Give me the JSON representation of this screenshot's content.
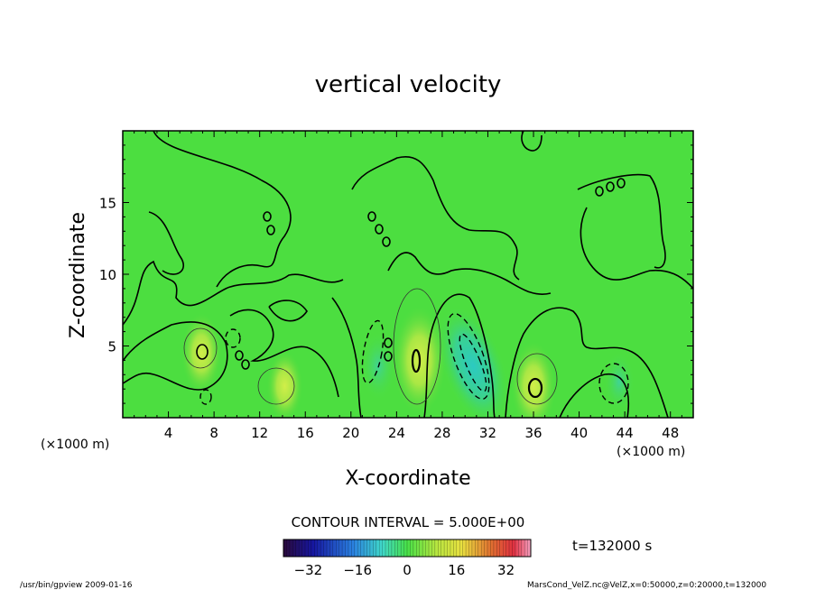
{
  "chart_data": {
    "type": "heatmap",
    "title": "vertical velocity",
    "xlabel": "X-coordinate",
    "ylabel": "Z-coordinate",
    "x_unit_label": "(×1000 m)",
    "y_unit_label": "(×1000 m)",
    "xlim": [
      0,
      50
    ],
    "ylim": [
      0,
      20
    ],
    "x_ticks": [
      "4",
      "8",
      "12",
      "16",
      "20",
      "24",
      "28",
      "32",
      "36",
      "40",
      "44",
      "48"
    ],
    "y_ticks": [
      "5",
      "10",
      "15"
    ],
    "contour_interval_label": "CONTOUR INTERVAL = 5.000E+00",
    "time_label": "t=132000 s",
    "colorbar": {
      "range": [
        -40,
        40
      ],
      "ticks": [
        "−32",
        "−16",
        "0",
        "16",
        "32"
      ]
    },
    "features": [
      {
        "x": 6.9,
        "z": 4.5,
        "value": 10
      },
      {
        "x": 14.2,
        "z": 2.2,
        "value": 8
      },
      {
        "x": 26.0,
        "z": 4.0,
        "value": 16
      },
      {
        "x": 36.0,
        "z": 2.2,
        "value": 12
      },
      {
        "x": 30.7,
        "z": 3.6,
        "value": -20
      },
      {
        "x": 22.4,
        "z": 3.6,
        "value": -8
      },
      {
        "x": 43.5,
        "z": 2.5,
        "value": -6
      }
    ],
    "grid": false
  },
  "footer": {
    "left": "/usr/bin/gpview  2009-01-16",
    "right": "MarsCond_VelZ.nc@VelZ,x=0:50000,z=0:20000,t=132000"
  },
  "colors": {
    "background_field": "#4cde40",
    "contour": "#000000"
  }
}
